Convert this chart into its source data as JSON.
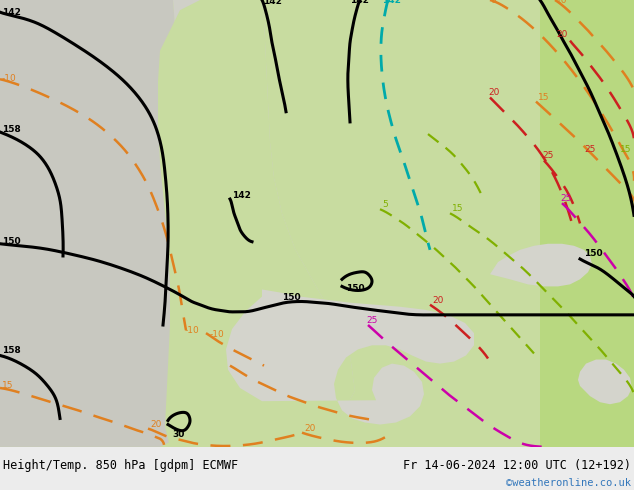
{
  "title_left": "Height/Temp. 850 hPa [gdpm] ECMWF",
  "title_right": "Fr 14-06-2024 12:00 UTC (12+192)",
  "watermark": "©weatheronline.co.uk",
  "bg_map_color": "#c8e0a0",
  "sea_color": "#c8c8c8",
  "bottom_bar_color": "#e8e8e8",
  "fig_width": 6.34,
  "fig_height": 4.9,
  "dpi": 100,
  "title_fontsize": 8.5,
  "watermark_color": "#3377bb",
  "watermark_fontsize": 7.5,
  "black_lw": 2.2,
  "orange_color": "#e08020",
  "green_color": "#80b000",
  "cyan_color": "#00aaaa",
  "red_color": "#cc2020",
  "magenta_color": "#cc00aa"
}
